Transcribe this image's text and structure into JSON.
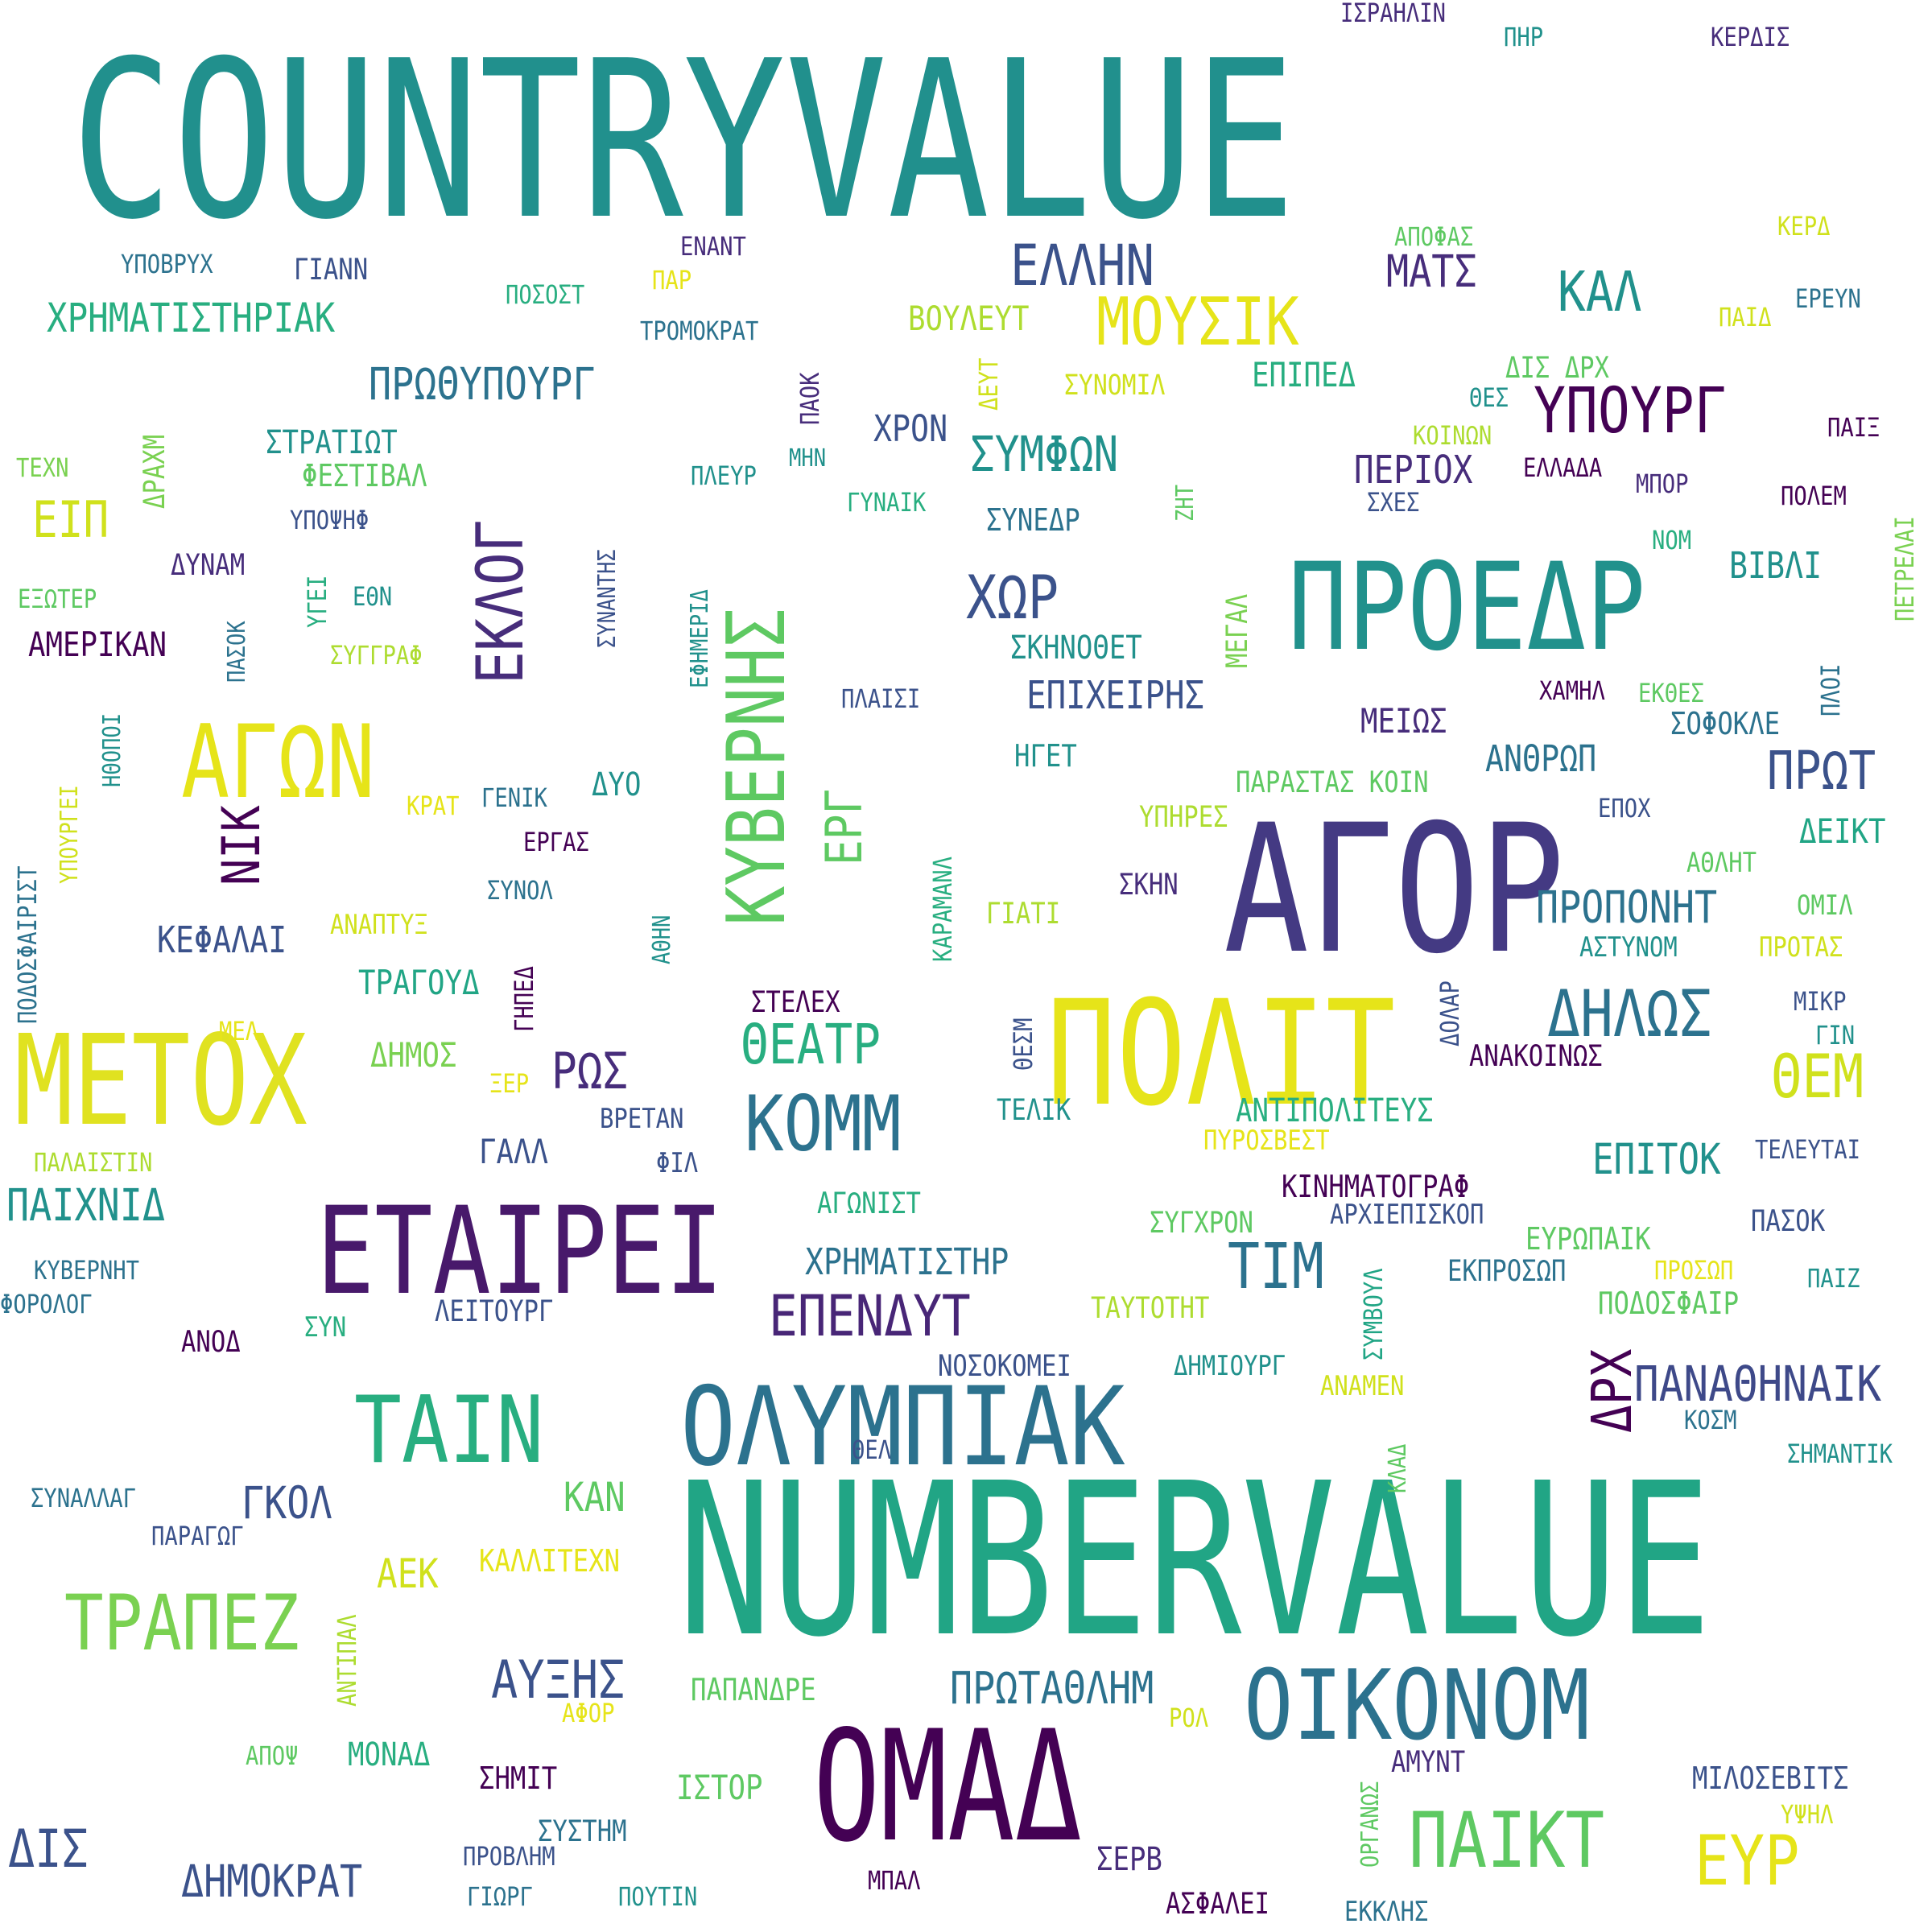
{
  "colors": {
    "background": "#ffffff",
    "palette": [
      "#440154",
      "#472d7b",
      "#3b528b",
      "#2c728e",
      "#21918c",
      "#28ae80",
      "#5ec962",
      "#addc30",
      "#e6e419"
    ]
  },
  "words": [
    "COUNTRYVALUE",
    "NUMBERVALUE",
    "ΑΓΟΡ",
    "ΠΟΛΙΤ",
    "ΠΡΟΕΔΡ",
    "ΜΕΤΟΧ",
    "ΕΤΑΙΡΕΙ",
    "ΟΛΥΜΠΙΑΚ",
    "ΟΜΑΔ",
    "ΟΙΚΟΝΟΜ",
    "ΑΓΩΝ",
    "ΤΑΙΝ",
    "ΚΥΒΕΡΝΗΣ",
    "ΤΡΑΠΕΖ",
    "ΚΟΜΜ",
    "ΠΑΙΚΤ",
    "ΕΚΛΟΓ",
    "ΜΟΥΣΙΚ",
    "ΥΠΟΥΡΓ",
    "ΕΛΛΗΝ",
    "ΔΗΛΩΣ",
    "ΤΙΜ",
    "ΧΩΡ",
    "ΕΥΡ",
    "ΘΕΜ",
    "ΠΑΝΑΘΗΝΑΙΚ",
    "ΕΠΕΝΔΥΤ",
    "ΑΥΞΗΣ",
    "ΠΡΩΤΑΘΛΗΜ",
    "ΘΕΑΤΡ",
    "ΔΡΧ",
    "ΚΑΛ",
    "ΠΡΩΤ",
    "ΣΥΜΦΩΝ",
    "ΝΙΚ",
    "ΕΡΓ",
    "ΠΡΟΠΟΝΗΤ",
    "ΔΗΜΟΚΡΑΤ",
    "ΠΑΙΧΝΙΔ",
    "ΠΡΩΘΥΠΟΥΡΓ",
    "ΧΡΗΜΑΤΙΣΤΗΡΙΑΚ",
    "ΧΡΗΜΑΤΙΣΤΗΡ",
    "ΕΠΙΤΟΚ",
    "ΡΩΣ",
    "ΜΑΤΣ",
    "ΔΙΣ",
    "ΕΙΠ",
    "ΓΚΟΛ",
    "ΚΑΝ",
    "ΑΕΚ",
    "ΕΠΙΧΕΙΡΗΣ",
    "ΠΕΡΙΟΧ",
    "ΚΙΝΗΜΑΤΟΓΡΑΦ",
    "ΚΕΦΑΛΑΙ",
    "ΑΜΕΡΙΚΑΝ",
    "ΑΝΤΙΠΟΛΙΤΕΥΣ",
    "ΒΟΥΛΕΥΤ",
    "ΕΠΙΠΕΔ",
    "ΠΟΔΟΣΦΑΙΡ",
    "ΕΥΡΩΠΑΙΚ",
    "ΑΝΘΡΩΠ",
    "ΜΕΙΩΣ",
    "ΒΙΒΛΙ",
    "ΣΚΗΝΟΘΕΤ",
    "ΜΟΝΑΔ",
    "ΤΡΑΓΟΥΔ",
    "ΧΡΟΝ",
    "ΙΣΤΟΡ",
    "ΣΗΜΙΤ",
    "ΚΑΛΛΙΤΕΧΝ",
    "ΠΑΠΑΝΔΡΕ",
    "ΣΤΡΑΤΙΩΤ",
    "ΦΕΣΤΙΒΑΛ",
    "ΣΥΝΕΔΡ",
    "ΝΟΣΟΚΟΜΕΙ",
    "ΤΑΥΤΟΤΗΤ",
    "ΣΥΓΧΡΟΝ",
    "ΑΓΩΝΙΣΤ",
    "ΛΕΙΤΟΥΡΓ",
    "ΠΑΡΑΣΤΑΣ ΚΟΙΝ",
    "ΥΠΗΡΕΣ",
    "ΣΚΗΝ",
    "ΓΙΑΤΙ",
    "ΗΓΕΤ",
    "ΣΥΝΟΜΙΛ",
    "ΑΡΧΙΕΠΙΣΚΟΠ",
    "ΕΚΠΡΟΣΩΠ",
    "ΔΗΜΙΟΥΡΓ",
    "ΑΝΑΜΕΝ",
    "ΑΝΑΚΟΙΝΩΣ",
    "ΠΥΡΟΣΒΕΣΤ",
    "ΤΕΛΙΚ",
    "ΣΤΕΛΕΧ",
    "ΒΡΕΤΑΝ",
    "ΦΙΛ",
    "ΓΑΛΛ",
    "ΔΗΜΟΣ",
    "ΞΕΡ",
    "ΜΕΛ",
    "ΠΑΛΑΙΣΤΙΝ",
    "ΚΥΒΕΡΝΗΤ",
    "ΦΟΡΟΛΟΓ",
    "ΑΝΟΔ",
    "ΣΥΝ",
    "ΣΥΝΑΛΛΑΓ",
    "ΠΑΡΑΓΩΓ",
    "ΑΠΟΨ",
    "ΑΦΟΡ",
    "ΣΥΣΤΗΜ",
    "ΠΡΟΒΛΗΜ",
    "ΓΙΩΡΓ",
    "ΠΟΥΤΙΝ",
    "ΜΠΑΛ",
    "ΣΕΡΒ",
    "ΑΣΦΑΛΕΙ",
    "ΑΜΥΝΤ",
    "ΕΚΚΛΗΣ",
    "ΜΙΛΟΣΕΒΙΤΣ",
    "ΥΨΗΛ",
    "ΣΗΜΑΝΤΙΚ",
    "ΚΟΣΜ",
    "ΡΟΛ",
    "ΘΕΛ",
    "ΠΑΙΖ",
    "ΠΡΟΣΩΠ",
    "ΠΑΣΟΚ",
    "ΤΕΛΕΥΤΑΙ",
    "ΓΙΝ",
    "ΜΙΚΡ",
    "ΑΣΤΥΝΟΜ",
    "ΠΡΟΤΑΣ",
    "ΟΜΙΛ",
    "ΑΘΛΗΤ",
    "ΔΕΙΚΤ",
    "ΕΠΟΧ",
    "ΣΟΦΟΚΛΕ",
    "ΧΑΜΗΛ",
    "ΕΚΘΕΣ",
    "ΝΟΜ",
    "ΣΧΕΣ",
    "ΜΠΟΡ",
    "ΠΟΛΕΜ",
    "ΕΛΛΑΔΑ",
    "ΚΟΙΝΩΝ",
    "ΘΕΣ",
    "ΔΙΣ ΔΡΧ",
    "ΠΑΙΞ",
    "ΠΑΙΔ",
    "ΕΡΕΥΝ",
    "ΚΕΡΔ",
    "ΑΠΟΦΑΣ",
    "ΚΕΡΔΙΣ",
    "ΠΗΡ",
    "ΙΣΡΑΗΛΙΝ",
    "ΕΝΑΝΤ",
    "ΠΑΡ",
    "ΠΟΣΟΣΤ",
    "ΤΡΟΜΟΚΡΑΤ",
    "ΥΠΟΒΡΥΧ",
    "ΓΙΑΝΝ",
    "ΠΛΕΥΡ",
    "ΜΗΝ",
    "ΓΥΝΑΙΚ",
    "ΤΕΧΝ",
    "ΥΠΟΨΗΦ",
    "ΔΥΝΑΜ",
    "ΕΘΝ",
    "ΕΞΩΤΕΡ",
    "ΣΥΓΓΡΑΦ",
    "ΠΛΑΙΣΙ",
    "ΔΥΟ",
    "ΓΕΝΙΚ",
    "ΚΡΑΤ",
    "ΕΡΓΑΣ",
    "ΣΥΝΟΛ",
    "ΑΝΑΠΤΥΞ",
    "ΔΕΥΤ",
    "ΖΗΤ",
    "ΠΑΟΚ",
    "ΣΥΝΑΝΤΗΣ",
    "ΕΦΗΜΕΡΙΔ",
    "ΑΘΗΝ",
    "ΚΑΡΑΜΑΝΛ",
    "ΜΕΓΑΛ",
    "ΘΕΣΜ",
    "ΔΟΛΑΡ",
    "ΣΥΜΒΟΥΛ",
    "ΚΛΑΔ",
    "ΟΡΓΑΝΩΣ",
    "ΑΝΤΙΠΑΛ",
    "ΓΗΠΕΔ",
    "ΥΓΕΙ",
    "ΠΑΣΟΚ",
    "ΗΘΟΠΟΙ",
    "ΥΠΟΥΡΓΕΙ",
    "ΠΟΔΟΣΦΑΙΡΙΣΤ",
    "ΔΡΑΧΜ",
    "ΠΕΤΡΕΛΑΙ",
    "ΠΛΟΙ"
  ]
}
